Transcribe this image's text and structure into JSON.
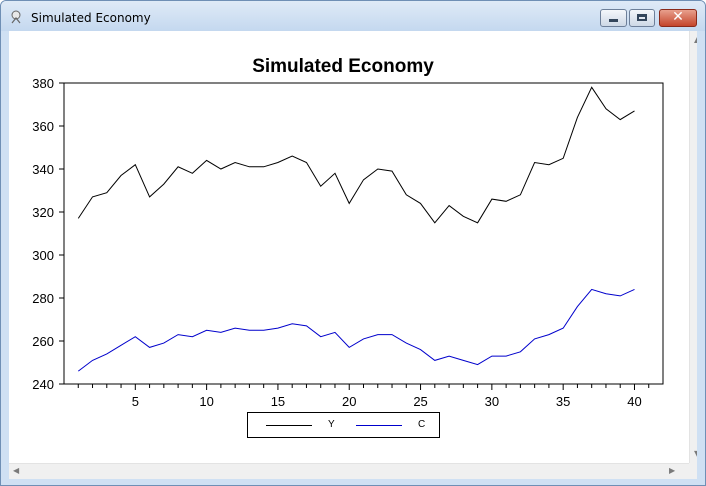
{
  "window": {
    "title": "Simulated Economy"
  },
  "colors": {
    "y_series": "#000000",
    "c_series": "#0000cc"
  },
  "chart_data": {
    "type": "line",
    "title": "Simulated Economy",
    "xlabel": "",
    "ylabel": "",
    "xlim": [
      0,
      42
    ],
    "ylim": [
      240,
      380
    ],
    "x_ticks": [
      5,
      10,
      15,
      20,
      25,
      30,
      35,
      40
    ],
    "y_ticks": [
      240,
      260,
      280,
      300,
      320,
      340,
      360,
      380
    ],
    "grid": false,
    "legend_position": "bottom-center",
    "x": [
      1,
      2,
      3,
      4,
      5,
      6,
      7,
      8,
      9,
      10,
      11,
      12,
      13,
      14,
      15,
      16,
      17,
      18,
      19,
      20,
      21,
      22,
      23,
      24,
      25,
      26,
      27,
      28,
      29,
      30,
      31,
      32,
      33,
      34,
      35,
      36,
      37,
      38,
      39,
      40
    ],
    "series": [
      {
        "name": "Y",
        "color": "#000000",
        "values": [
          317,
          327,
          329,
          337,
          342,
          327,
          333,
          341,
          338,
          344,
          340,
          343,
          341,
          341,
          343,
          346,
          343,
          332,
          338,
          324,
          335,
          340,
          339,
          328,
          324,
          315,
          323,
          318,
          315,
          326,
          325,
          328,
          343,
          342,
          345,
          364,
          378,
          368,
          363,
          367
        ]
      },
      {
        "name": "C",
        "color": "#0000cc",
        "values": [
          246,
          251,
          254,
          258,
          262,
          257,
          259,
          263,
          262,
          265,
          264,
          266,
          265,
          265,
          266,
          268,
          267,
          262,
          264,
          257,
          261,
          263,
          263,
          259,
          256,
          251,
          253,
          251,
          249,
          253,
          253,
          255,
          261,
          263,
          266,
          276,
          284,
          282,
          281,
          284
        ]
      }
    ]
  }
}
